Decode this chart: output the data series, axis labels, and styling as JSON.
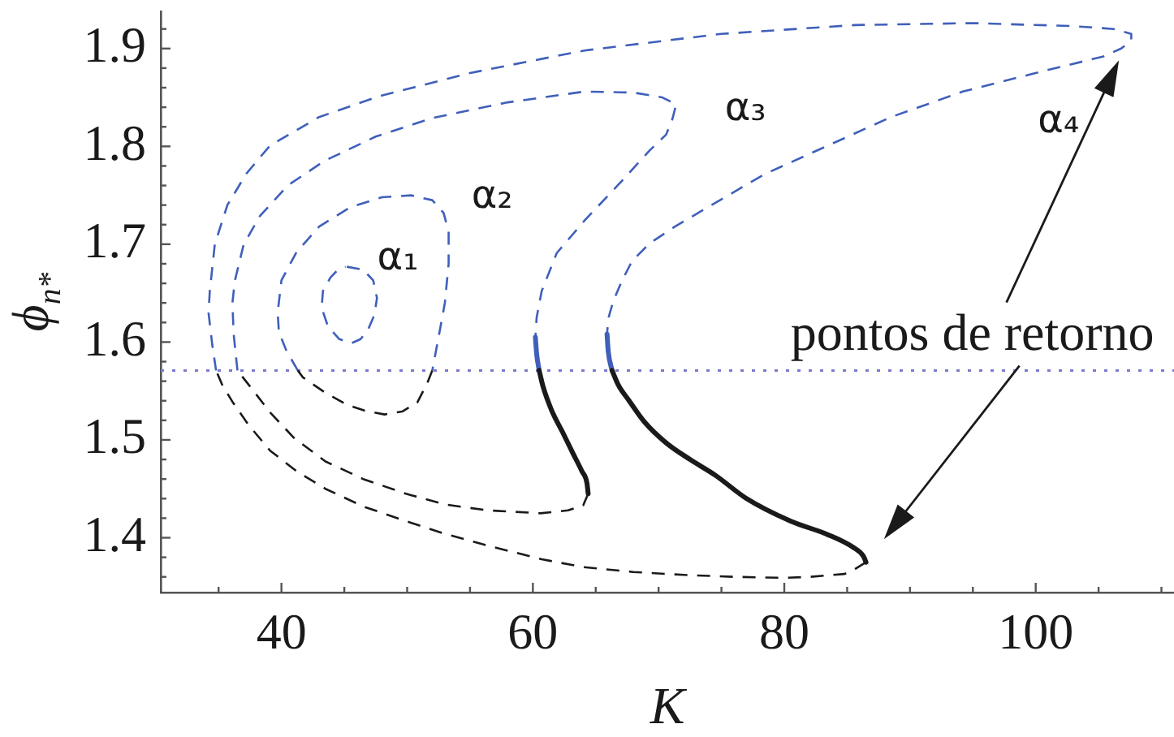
{
  "chart_data": {
    "type": "line",
    "xlabel": "K",
    "ylabel": "ϕ$_{n*}$",
    "marker": "none",
    "xlim": [
      30.4,
      111
    ],
    "xticks": [
      {
        "value": 35,
        "label": null
      },
      40,
      {
        "value": 45,
        "label": null
      },
      {
        "value": 50,
        "label": null
      },
      {
        "value": 55,
        "label": null
      },
      60,
      {
        "value": 65,
        "label": null
      },
      {
        "value": 70,
        "label": null
      },
      {
        "value": 75,
        "label": null
      },
      80,
      {
        "value": 85,
        "label": null
      },
      {
        "value": 90,
        "label": null
      },
      {
        "value": 95,
        "label": null
      },
      100,
      {
        "value": 105,
        "label": null
      },
      {
        "value": 110,
        "label": null
      }
    ],
    "ylim": [
      1.344,
      1.938
    ],
    "yticks": [
      {
        "value": 1.36,
        "label": null
      },
      {
        "value": 1.38,
        "label": null
      },
      1.4,
      {
        "value": 1.42,
        "label": null
      },
      {
        "value": 1.44,
        "label": null
      },
      {
        "value": 1.46,
        "label": null
      },
      {
        "value": 1.48,
        "label": null
      },
      1.5,
      {
        "value": 1.52,
        "label": null
      },
      {
        "value": 1.54,
        "label": null
      },
      {
        "value": 1.56,
        "label": null
      },
      {
        "value": 1.58,
        "label": null
      },
      1.6,
      {
        "value": 1.62,
        "label": null
      },
      {
        "value": 1.64,
        "label": null
      },
      {
        "value": 1.66,
        "label": null
      },
      {
        "value": 1.68,
        "label": null
      },
      1.7,
      {
        "value": 1.72,
        "label": null
      },
      {
        "value": 1.74,
        "label": null
      },
      {
        "value": 1.76,
        "label": null
      },
      {
        "value": 1.78,
        "label": null
      },
      1.8,
      {
        "value": 1.82,
        "label": null
      },
      {
        "value": 1.84,
        "label": null
      },
      {
        "value": 1.86,
        "label": null
      },
      {
        "value": 1.88,
        "label": null
      },
      1.9,
      {
        "value": 1.92,
        "label": null
      }
    ],
    "ref_lines": [
      {
        "axis": "y",
        "value": 1.571,
        "color": "#7a7ad0",
        "line_style": "dotted"
      }
    ],
    "annotations": [
      "pontos de retorno",
      "α₁",
      "α₂",
      "α₃",
      "α₄"
    ],
    "series": [
      {
        "color": "#3f5fba",
        "line_style": "dashed",
        "x": [
          45.2,
          46.5,
          47.3,
          47.6,
          47.4,
          46.9,
          46.3,
          45.6,
          44.6,
          43.7,
          43.2,
          43.3,
          43.9,
          44.5,
          45.1,
          null,
          41.3,
          40.4,
          39.8,
          39.7,
          40.0,
          41.2,
          43.0,
          45.5,
          48.0,
          50.3,
          52.0,
          52.9,
          53.3,
          53.3,
          53.0,
          52.5,
          52.0,
          null,
          36.5,
          36.2,
          36.1,
          36.3,
          37.0,
          38.3,
          40.5,
          43.4,
          47.5,
          52.0,
          58.0,
          64.1,
          68.0,
          70.3,
          71.4,
          71.1,
          70.6,
          69.3,
          67.1,
          64.1,
          61.9,
          60.7,
          60.3,
          60.2,
          null,
          34.8,
          34.5,
          34.2,
          34.3,
          34.7,
          35.7,
          37.2,
          39.1,
          43.0,
          47.7,
          55.0,
          64.1,
          75.0,
          85.6,
          95.0,
          102.9,
          106.2,
          107.6,
          107.6,
          106.8,
          105.4,
          100.0,
          94.2,
          88.5,
          83.5,
          78.5,
          74.2,
          71.3,
          69.3,
          67.9,
          67.1,
          66.4,
          66.0,
          65.9
        ],
        "values": [
          1.677,
          1.674,
          1.663,
          1.645,
          1.628,
          1.613,
          1.603,
          1.599,
          1.603,
          1.616,
          1.635,
          1.652,
          1.666,
          1.674,
          1.677,
          null,
          1.571,
          1.591,
          1.61,
          1.63,
          1.663,
          1.692,
          1.718,
          1.738,
          1.748,
          1.75,
          1.745,
          1.732,
          1.713,
          1.68,
          1.64,
          1.605,
          1.571,
          null,
          1.571,
          1.608,
          1.64,
          1.663,
          1.7,
          1.729,
          1.76,
          1.785,
          1.81,
          1.829,
          1.845,
          1.856,
          1.855,
          1.85,
          1.843,
          1.828,
          1.812,
          1.796,
          1.765,
          1.724,
          1.691,
          1.652,
          1.625,
          1.605,
          null,
          1.571,
          1.597,
          1.63,
          1.652,
          1.7,
          1.74,
          1.772,
          1.801,
          1.83,
          1.851,
          1.875,
          1.898,
          1.915,
          1.924,
          1.926,
          1.923,
          1.92,
          1.915,
          1.908,
          1.9,
          1.892,
          1.875,
          1.856,
          1.83,
          1.801,
          1.772,
          1.74,
          1.718,
          1.701,
          1.683,
          1.663,
          1.642,
          1.624,
          1.608
        ]
      },
      {
        "color": "#3f5fba",
        "line_style": "solid",
        "x": [
          60.2,
          60.3,
          60.5,
          null,
          65.9,
          66.0,
          66.3
        ],
        "values": [
          1.605,
          1.588,
          1.571,
          null,
          1.608,
          1.59,
          1.571
        ]
      },
      {
        "color": "#1a1a1a",
        "line_style": "solid",
        "x": [
          60.5,
          60.8,
          61.5,
          62.4,
          63.2,
          63.9,
          64.3,
          64.4,
          null,
          66.3,
          66.8,
          67.6,
          68.9,
          70.6,
          72.5,
          74.5,
          77.0,
          80.5,
          83.5,
          85.5,
          86.3,
          86.5
        ],
        "values": [
          1.571,
          1.555,
          1.53,
          1.507,
          1.486,
          1.468,
          1.456,
          1.445,
          null,
          1.571,
          1.556,
          1.541,
          1.518,
          1.497,
          1.48,
          1.464,
          1.44,
          1.417,
          1.403,
          1.39,
          1.381,
          1.375
        ]
      },
      {
        "color": "#1a1a1a",
        "line_style": "dashed",
        "x": [
          52.0,
          51.6,
          50.8,
          49.6,
          48.2,
          46.6,
          45.2,
          43.4,
          41.7,
          41.3,
          null,
          64.4,
          64.0,
          62.8,
          60.6,
          56.4,
          53.0,
          49.9,
          46.5,
          43.5,
          41.0,
          39.1,
          37.6,
          36.5,
          null,
          86.5,
          85.5,
          84.8,
          82.0,
          80.0,
          76.0,
          72.0,
          68.0,
          64.0,
          60.7,
          56.4,
          53.0,
          49.9,
          46.5,
          43.5,
          41.2,
          39.1,
          37.4,
          36.1,
          35.3,
          34.8
        ],
        "values": [
          1.571,
          1.558,
          1.538,
          1.529,
          1.526,
          1.53,
          1.536,
          1.549,
          1.564,
          1.571,
          null,
          1.445,
          1.433,
          1.428,
          1.425,
          1.428,
          1.434,
          1.445,
          1.46,
          1.478,
          1.502,
          1.528,
          1.553,
          1.571,
          null,
          1.375,
          1.367,
          1.363,
          1.36,
          1.359,
          1.36,
          1.362,
          1.365,
          1.37,
          1.378,
          1.392,
          1.404,
          1.417,
          1.432,
          1.45,
          1.468,
          1.489,
          1.515,
          1.539,
          1.556,
          1.571
        ]
      }
    ]
  }
}
